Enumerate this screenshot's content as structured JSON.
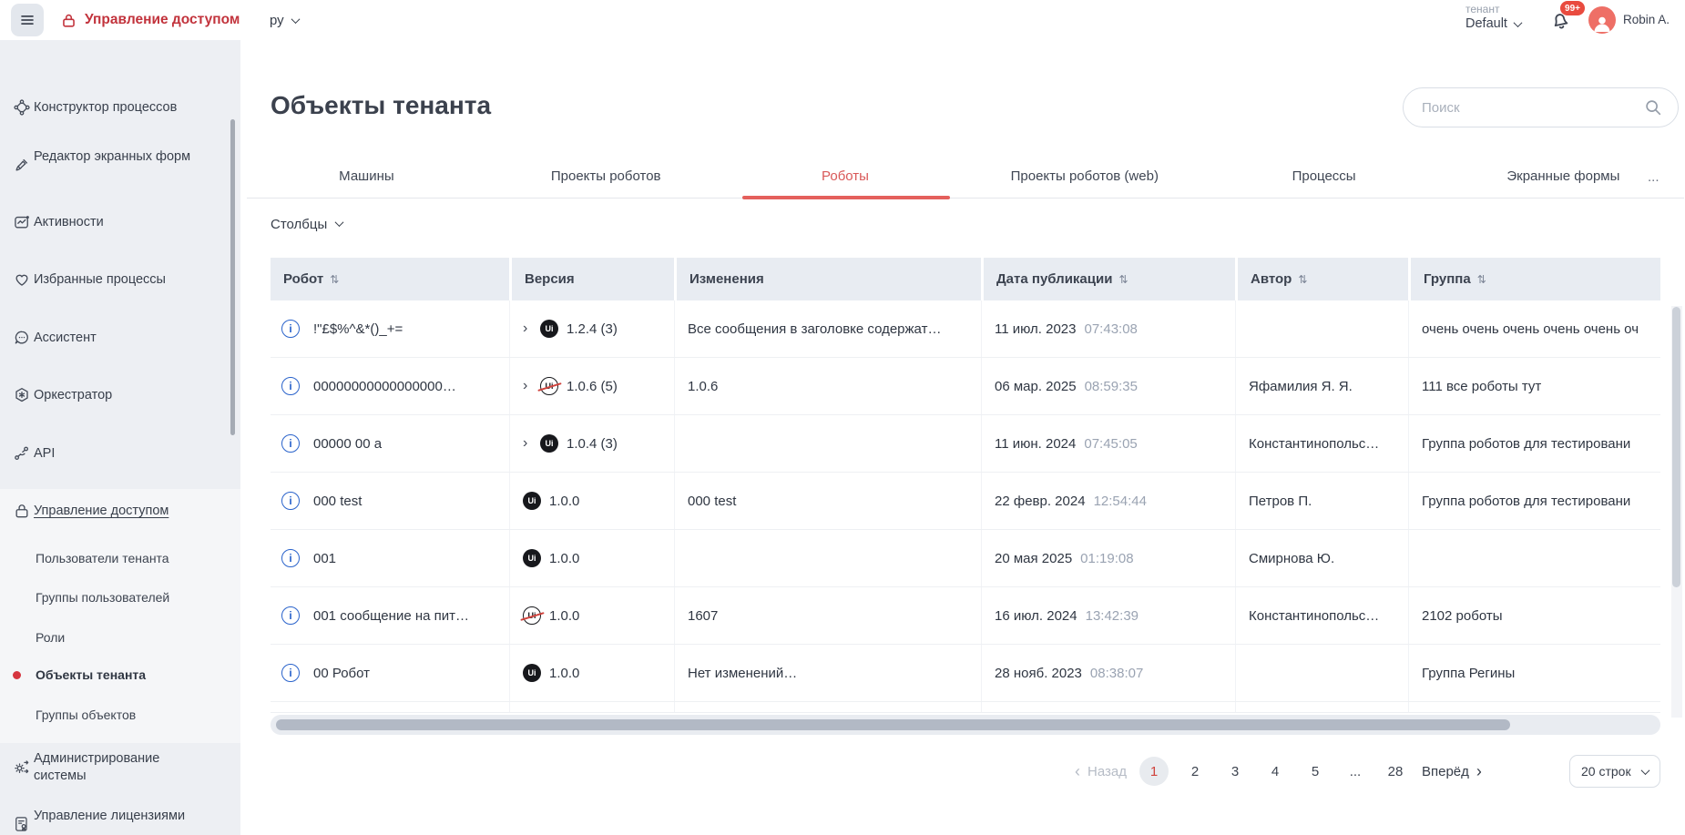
{
  "topbar": {
    "app_title": "Управление доступом",
    "language": "ру",
    "tenant_label": "тенант",
    "tenant_value": "Default",
    "notifications_badge": "99+",
    "user_name": "Robin A."
  },
  "sidebar": {
    "items": [
      {
        "label": "Конструктор процессов"
      },
      {
        "label": "Редактор экранных форм"
      },
      {
        "label": "Активности"
      },
      {
        "label": "Избранные процессы"
      },
      {
        "label": "Ассистент"
      },
      {
        "label": "Оркестратор"
      },
      {
        "label": "API"
      },
      {
        "label": "Управление доступом"
      },
      {
        "label": "Администрирование системы"
      },
      {
        "label": "Управление лицензиями"
      }
    ],
    "access_subitems": [
      {
        "label": "Пользователи тенанта"
      },
      {
        "label": "Группы пользователей"
      },
      {
        "label": "Роли"
      },
      {
        "label": "Объекты тенанта"
      },
      {
        "label": "Группы объектов"
      }
    ],
    "active_subitem": "Объекты тенанта"
  },
  "main": {
    "page_title": "Объекты тенанта",
    "search_placeholder": "Поиск",
    "columns_button": "Столбцы",
    "tabs": [
      {
        "label": "Машины"
      },
      {
        "label": "Проекты роботов"
      },
      {
        "label": "Роботы"
      },
      {
        "label": "Проекты роботов (web)"
      },
      {
        "label": "Процессы"
      },
      {
        "label": "Экранные формы"
      },
      {
        "label": "..."
      }
    ],
    "active_tab": "Роботы"
  },
  "table": {
    "info_glyph": "i",
    "badge_glyph": "Ui",
    "expand_glyph": "›",
    "sort_glyph": "⇅",
    "headers": [
      {
        "label": "Робот",
        "sortable": true
      },
      {
        "label": "Версия",
        "sortable": false
      },
      {
        "label": "Изменения",
        "sortable": false
      },
      {
        "label": "Дата публикации",
        "sortable": true
      },
      {
        "label": "Автор",
        "sortable": true
      },
      {
        "label": "Группа",
        "sortable": true
      }
    ],
    "rows": [
      {
        "name": "!\"£$%^&*()_+=",
        "expandable": true,
        "badge": "ui",
        "version": "1.2.4 (3)",
        "changes": "Все сообщения в заголовке содержат…",
        "date": "11 июл. 2023",
        "time": "07:43:08",
        "author": "",
        "group": "очень очень очень очень очень оч"
      },
      {
        "name": "00000000000000000…",
        "expandable": true,
        "badge": "ui-crossed",
        "version": "1.0.6 (5)",
        "changes": "1.0.6",
        "date": "06 мар. 2025",
        "time": "08:59:35",
        "author": "Яфамилия Я. Я.",
        "group": "111 все роботы тут"
      },
      {
        "name": "00000 00 a",
        "expandable": true,
        "badge": "ui",
        "version": "1.0.4 (3)",
        "changes": "",
        "date": "11 июн. 2024",
        "time": "07:45:05",
        "author": "Константинопольс…",
        "group": "Группа роботов для тестировани"
      },
      {
        "name": "000 test",
        "expandable": false,
        "badge": "ui",
        "version": "1.0.0",
        "changes": "000 test",
        "date": "22 февр. 2024",
        "time": "12:54:44",
        "author": "Петров П.",
        "group": "Группа роботов для тестировани"
      },
      {
        "name": "001",
        "expandable": false,
        "badge": "ui",
        "version": "1.0.0",
        "changes": "",
        "date": "20 мая 2025",
        "time": "01:19:08",
        "author": "Смирнова Ю.",
        "group": ""
      },
      {
        "name": "001 сообщение на пит…",
        "expandable": false,
        "badge": "ui-crossed",
        "version": "1.0.0",
        "changes": "1607",
        "date": "16 июл. 2024",
        "time": "13:42:39",
        "author": "Константинопольс…",
        "group": "2102 роботы"
      },
      {
        "name": "00 Робот",
        "expandable": false,
        "badge": "ui",
        "version": "1.0.0",
        "changes": "Нет изменений…",
        "date": "28 нояб. 2023",
        "time": "08:38:07",
        "author": "",
        "group": "Группа Регины"
      }
    ]
  },
  "pagination": {
    "back": "Назад",
    "back_chevron": "‹",
    "pages": [
      "1",
      "2",
      "3",
      "4",
      "5",
      "...",
      "28"
    ],
    "active_page": "1",
    "next": "Вперёд",
    "next_chevron": "›",
    "rows_per_page": "20 строк"
  },
  "colors": {
    "brand_red": "#c2333c",
    "accent_red": "#d0433d",
    "tab_active_red": "#d95858",
    "avatar_coral": "#ee6f66",
    "badge_red": "#e94b3f",
    "header_bg": "#e8ecf2",
    "sidebar_bg": "#edeff3"
  }
}
